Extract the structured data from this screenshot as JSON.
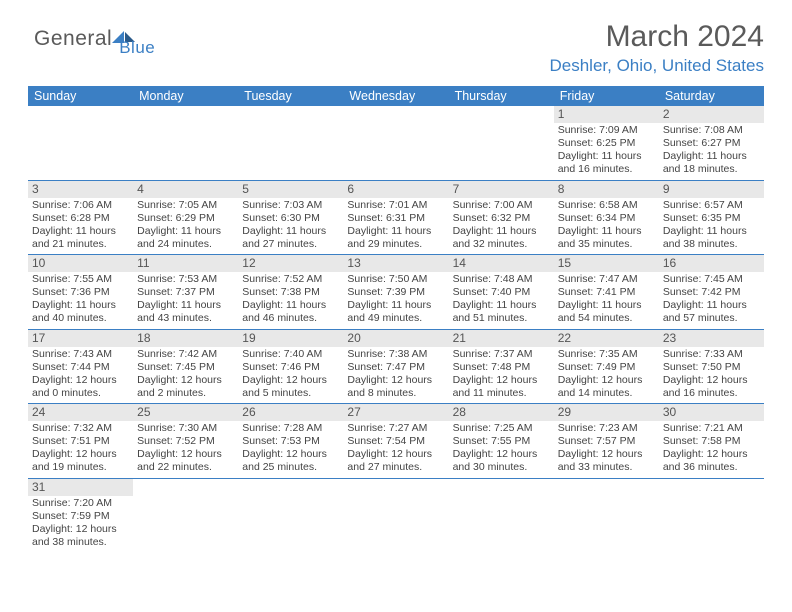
{
  "brand": {
    "name1": "General",
    "name2": "Blue"
  },
  "title": "March 2024",
  "location": "Deshler, Ohio, United States",
  "colors": {
    "header_bar": "#3b7fc4",
    "daynum_bg": "#e8e8e8",
    "text": "#444444",
    "title_text": "#5a5a5a"
  },
  "weekdays": [
    "Sunday",
    "Monday",
    "Tuesday",
    "Wednesday",
    "Thursday",
    "Friday",
    "Saturday"
  ],
  "weeks": [
    [
      {
        "n": "",
        "sr": "",
        "ss": "",
        "dl": ""
      },
      {
        "n": "",
        "sr": "",
        "ss": "",
        "dl": ""
      },
      {
        "n": "",
        "sr": "",
        "ss": "",
        "dl": ""
      },
      {
        "n": "",
        "sr": "",
        "ss": "",
        "dl": ""
      },
      {
        "n": "",
        "sr": "",
        "ss": "",
        "dl": ""
      },
      {
        "n": "1",
        "sr": "Sunrise: 7:09 AM",
        "ss": "Sunset: 6:25 PM",
        "dl": "Daylight: 11 hours and 16 minutes."
      },
      {
        "n": "2",
        "sr": "Sunrise: 7:08 AM",
        "ss": "Sunset: 6:27 PM",
        "dl": "Daylight: 11 hours and 18 minutes."
      }
    ],
    [
      {
        "n": "3",
        "sr": "Sunrise: 7:06 AM",
        "ss": "Sunset: 6:28 PM",
        "dl": "Daylight: 11 hours and 21 minutes."
      },
      {
        "n": "4",
        "sr": "Sunrise: 7:05 AM",
        "ss": "Sunset: 6:29 PM",
        "dl": "Daylight: 11 hours and 24 minutes."
      },
      {
        "n": "5",
        "sr": "Sunrise: 7:03 AM",
        "ss": "Sunset: 6:30 PM",
        "dl": "Daylight: 11 hours and 27 minutes."
      },
      {
        "n": "6",
        "sr": "Sunrise: 7:01 AM",
        "ss": "Sunset: 6:31 PM",
        "dl": "Daylight: 11 hours and 29 minutes."
      },
      {
        "n": "7",
        "sr": "Sunrise: 7:00 AM",
        "ss": "Sunset: 6:32 PM",
        "dl": "Daylight: 11 hours and 32 minutes."
      },
      {
        "n": "8",
        "sr": "Sunrise: 6:58 AM",
        "ss": "Sunset: 6:34 PM",
        "dl": "Daylight: 11 hours and 35 minutes."
      },
      {
        "n": "9",
        "sr": "Sunrise: 6:57 AM",
        "ss": "Sunset: 6:35 PM",
        "dl": "Daylight: 11 hours and 38 minutes."
      }
    ],
    [
      {
        "n": "10",
        "sr": "Sunrise: 7:55 AM",
        "ss": "Sunset: 7:36 PM",
        "dl": "Daylight: 11 hours and 40 minutes."
      },
      {
        "n": "11",
        "sr": "Sunrise: 7:53 AM",
        "ss": "Sunset: 7:37 PM",
        "dl": "Daylight: 11 hours and 43 minutes."
      },
      {
        "n": "12",
        "sr": "Sunrise: 7:52 AM",
        "ss": "Sunset: 7:38 PM",
        "dl": "Daylight: 11 hours and 46 minutes."
      },
      {
        "n": "13",
        "sr": "Sunrise: 7:50 AM",
        "ss": "Sunset: 7:39 PM",
        "dl": "Daylight: 11 hours and 49 minutes."
      },
      {
        "n": "14",
        "sr": "Sunrise: 7:48 AM",
        "ss": "Sunset: 7:40 PM",
        "dl": "Daylight: 11 hours and 51 minutes."
      },
      {
        "n": "15",
        "sr": "Sunrise: 7:47 AM",
        "ss": "Sunset: 7:41 PM",
        "dl": "Daylight: 11 hours and 54 minutes."
      },
      {
        "n": "16",
        "sr": "Sunrise: 7:45 AM",
        "ss": "Sunset: 7:42 PM",
        "dl": "Daylight: 11 hours and 57 minutes."
      }
    ],
    [
      {
        "n": "17",
        "sr": "Sunrise: 7:43 AM",
        "ss": "Sunset: 7:44 PM",
        "dl": "Daylight: 12 hours and 0 minutes."
      },
      {
        "n": "18",
        "sr": "Sunrise: 7:42 AM",
        "ss": "Sunset: 7:45 PM",
        "dl": "Daylight: 12 hours and 2 minutes."
      },
      {
        "n": "19",
        "sr": "Sunrise: 7:40 AM",
        "ss": "Sunset: 7:46 PM",
        "dl": "Daylight: 12 hours and 5 minutes."
      },
      {
        "n": "20",
        "sr": "Sunrise: 7:38 AM",
        "ss": "Sunset: 7:47 PM",
        "dl": "Daylight: 12 hours and 8 minutes."
      },
      {
        "n": "21",
        "sr": "Sunrise: 7:37 AM",
        "ss": "Sunset: 7:48 PM",
        "dl": "Daylight: 12 hours and 11 minutes."
      },
      {
        "n": "22",
        "sr": "Sunrise: 7:35 AM",
        "ss": "Sunset: 7:49 PM",
        "dl": "Daylight: 12 hours and 14 minutes."
      },
      {
        "n": "23",
        "sr": "Sunrise: 7:33 AM",
        "ss": "Sunset: 7:50 PM",
        "dl": "Daylight: 12 hours and 16 minutes."
      }
    ],
    [
      {
        "n": "24",
        "sr": "Sunrise: 7:32 AM",
        "ss": "Sunset: 7:51 PM",
        "dl": "Daylight: 12 hours and 19 minutes."
      },
      {
        "n": "25",
        "sr": "Sunrise: 7:30 AM",
        "ss": "Sunset: 7:52 PM",
        "dl": "Daylight: 12 hours and 22 minutes."
      },
      {
        "n": "26",
        "sr": "Sunrise: 7:28 AM",
        "ss": "Sunset: 7:53 PM",
        "dl": "Daylight: 12 hours and 25 minutes."
      },
      {
        "n": "27",
        "sr": "Sunrise: 7:27 AM",
        "ss": "Sunset: 7:54 PM",
        "dl": "Daylight: 12 hours and 27 minutes."
      },
      {
        "n": "28",
        "sr": "Sunrise: 7:25 AM",
        "ss": "Sunset: 7:55 PM",
        "dl": "Daylight: 12 hours and 30 minutes."
      },
      {
        "n": "29",
        "sr": "Sunrise: 7:23 AM",
        "ss": "Sunset: 7:57 PM",
        "dl": "Daylight: 12 hours and 33 minutes."
      },
      {
        "n": "30",
        "sr": "Sunrise: 7:21 AM",
        "ss": "Sunset: 7:58 PM",
        "dl": "Daylight: 12 hours and 36 minutes."
      }
    ],
    [
      {
        "n": "31",
        "sr": "Sunrise: 7:20 AM",
        "ss": "Sunset: 7:59 PM",
        "dl": "Daylight: 12 hours and 38 minutes."
      },
      {
        "n": "",
        "sr": "",
        "ss": "",
        "dl": ""
      },
      {
        "n": "",
        "sr": "",
        "ss": "",
        "dl": ""
      },
      {
        "n": "",
        "sr": "",
        "ss": "",
        "dl": ""
      },
      {
        "n": "",
        "sr": "",
        "ss": "",
        "dl": ""
      },
      {
        "n": "",
        "sr": "",
        "ss": "",
        "dl": ""
      },
      {
        "n": "",
        "sr": "",
        "ss": "",
        "dl": ""
      }
    ]
  ]
}
